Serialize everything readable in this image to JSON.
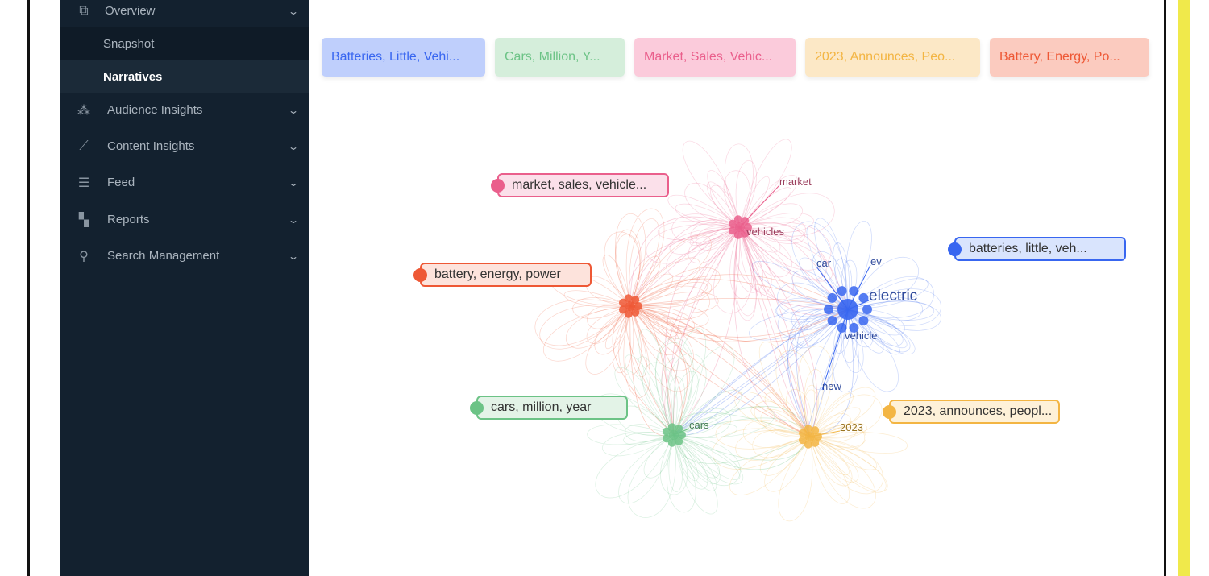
{
  "sidebar": {
    "overview": {
      "label": "Overview",
      "icon": "overview-icon"
    },
    "sub_items": [
      {
        "label": "Snapshot",
        "active": false
      },
      {
        "label": "Narratives",
        "active": true
      }
    ],
    "items": [
      {
        "label": "Audience Insights",
        "icon": "audience-icon"
      },
      {
        "label": "Content Insights",
        "icon": "chart-icon"
      },
      {
        "label": "Feed",
        "icon": "list-icon"
      },
      {
        "label": "Reports",
        "icon": "dashboard-icon"
      },
      {
        "label": "Search Management",
        "icon": "search-icon"
      }
    ]
  },
  "chips": [
    {
      "label": "Batteries, Little, Vehi...",
      "bg": "#bfcffc",
      "fg": "#3866f0"
    },
    {
      "label": "Cars, Million, Y...",
      "bg": "#d5eedb",
      "fg": "#6cc386"
    },
    {
      "label": "Market, Sales, Vehic...",
      "bg": "#fbcbdb",
      "fg": "#ea5f8c"
    },
    {
      "label": "2023, Announces, Peo...",
      "bg": "#fce8c6",
      "fg": "#f3b543"
    },
    {
      "label": "Battery, Energy, Po...",
      "bg": "#fbcbbf",
      "fg": "#ee5835"
    }
  ],
  "clusters": [
    {
      "label": "market, sales, vehicle...",
      "color": "#ea5f8c",
      "words": [
        "market",
        "vehicles"
      ]
    },
    {
      "label": "battery, energy, power",
      "color": "#ee5835",
      "words": []
    },
    {
      "label": "batteries, little, veh...",
      "color": "#3866f0",
      "words": [
        "car",
        "ev",
        "electric",
        "vehicle",
        "new"
      ]
    },
    {
      "label": "cars, million, year",
      "color": "#6cc386",
      "words": [
        "cars"
      ]
    },
    {
      "label": "2023, announces, peopl...",
      "color": "#f3b543",
      "words": [
        "2023"
      ]
    }
  ]
}
